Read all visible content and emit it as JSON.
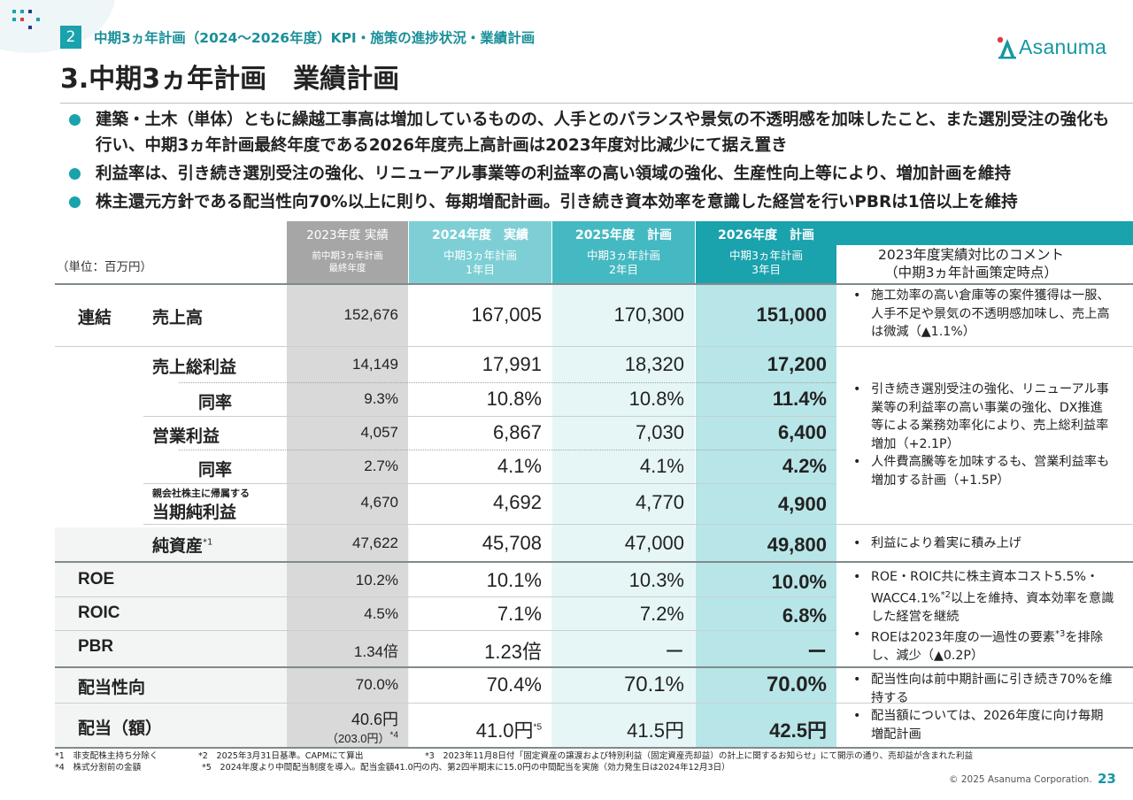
{
  "section": {
    "number": "2",
    "title": "中期3ヵ年計画（2024～2026年度）KPI・施策の進捗状況・業績計画"
  },
  "logo": {
    "text": "Asanuma"
  },
  "page_title": "3.中期3ヵ年計画　業績計画",
  "bullets": [
    "建築・土木（単体）ともに繰越工事高は増加しているものの、人手とのバランスや景気の不透明感を加味したこと、また選別受注の強化も行い、中期3ヵ年計画最終年度である2026年度売上高計画は2023年度対比減少にて据え置き",
    "利益率は、引き続き選別受注の強化、リニューアル事業等の利益率の高い領域の強化、生産性向上等により、増加計画を維持",
    "株主還元方針である配当性向70%以上に則り、毎期増配計画。引き続き資本効率を意識した経営を行いPBRは1倍以上を維持"
  ],
  "table": {
    "unit": "（単位：百万円）",
    "headers": [
      {
        "line1": "2023年度 実績",
        "line2": "前中期3ヵ年計画",
        "line3": "最終年度"
      },
      {
        "line1": "2024年度　実績",
        "line2": "中期3ヵ年計画",
        "line3": "1年目"
      },
      {
        "line1": "2025年度　計画",
        "line2": "中期3ヵ年計画",
        "line3": "2年目"
      },
      {
        "line1": "2026年度　計画",
        "line2": "中期3ヵ年計画",
        "line3": "3年目"
      }
    ],
    "comment_header": {
      "line1": "2023年度実績対比のコメント",
      "line2": "（中期3ヵ年計画策定時点）"
    },
    "group_label": "連結",
    "rows": [
      {
        "label": "売上高",
        "v": [
          "152,676",
          "167,005",
          "170,300",
          "151,000"
        ]
      },
      {
        "label": "売上総利益",
        "v": [
          "14,149",
          "17,991",
          "18,320",
          "17,200"
        ]
      },
      {
        "label": "同率",
        "v": [
          "9.3%",
          "10.8%",
          "10.8%",
          "11.4%"
        ]
      },
      {
        "label": "営業利益",
        "v": [
          "4,057",
          "6,867",
          "7,030",
          "6,400"
        ]
      },
      {
        "label": "同率",
        "v": [
          "2.7%",
          "4.1%",
          "4.1%",
          "4.2%"
        ]
      },
      {
        "label_small": "親会社株主に帰属する",
        "label": "当期純利益",
        "v": [
          "4,670",
          "4,692",
          "4,770",
          "4,900"
        ]
      },
      {
        "label": "純資産",
        "note": "*1",
        "v": [
          "47,622",
          "45,708",
          "47,000",
          "49,800"
        ]
      },
      {
        "label": "ROE",
        "v": [
          "10.2%",
          "10.1%",
          "10.3%",
          "10.0%"
        ]
      },
      {
        "label": "ROIC",
        "v": [
          "4.5%",
          "7.1%",
          "7.2%",
          "6.8%"
        ]
      },
      {
        "label": "PBR",
        "v": [
          "1.34倍",
          "1.23倍",
          "ー",
          "ー"
        ]
      },
      {
        "label": "配当性向",
        "v": [
          "70.0%",
          "70.4%",
          "70.1%",
          "70.0%"
        ]
      },
      {
        "label": "配当（額）",
        "v": [
          "40.6円",
          "41.0円",
          "41.5円",
          "42.5円"
        ],
        "sub": "（203.0円）",
        "sub_note": "*4",
        "v24_note": "*5"
      }
    ],
    "comments": {
      "sales": [
        "施工効率の高い倉庫等の案件獲得は一服、人手不足や景気の不透明感加味し、売上高は微減（▲1.1%）"
      ],
      "profit": [
        "引き続き選別受注の強化、リニューアル事業等の利益率の高い事業の強化、DX推進等による業務効率化により、売上総利益率増加（+2.1P）",
        "人件費高騰等を加味するも、営業利益率も増加する計画（+1.5P）"
      ],
      "equity": [
        "利益により着実に積み上げ"
      ],
      "roe_a": "ROE・ROIC共に株主資本コスト5.5%・WACC4.1%",
      "roe_a_note": "*2",
      "roe_a_tail": "以上を維持、資本効率を意識した経営を継続",
      "roe_b": "ROEは2023年度の一過性の要素",
      "roe_b_note": "*3",
      "roe_b_tail": "を排除し、減少（▲0.2P）",
      "dividend": [
        "配当性向は前中期計画に引き続き70%を維持する",
        "配当額については、2026年度に向け毎期増配計画"
      ]
    }
  },
  "footnotes": {
    "n1": "*1　非支配株主持ち分除く",
    "n2": "*2　2025年3月31日基準。CAPMにて算出",
    "n3": "*3　2023年11月8日付「固定資産の譲渡および特別利益（固定資産売却益）の計上に関するお知らせ」にて開示の通り、売却益が含まれた利益",
    "n4": "*4　株式分割前の金額",
    "n5": "*5　2024年度より中間配当制度を導入。配当金額41.0円の内、第2四半期末に15.0円の中間配当を実施（効力発生日は2024年12月3日）"
  },
  "copyright": "© 2025 Asanuma Corporation.",
  "page_number": "23",
  "colors": {
    "teal": "#1aa2ad",
    "teal_light": "#7dcfd5",
    "teal_mid": "#45b9c2",
    "gray_col": "#d9d9d9",
    "plan_col_25": "#e6f6f7",
    "plan_col_26": "#b8e5e8"
  }
}
